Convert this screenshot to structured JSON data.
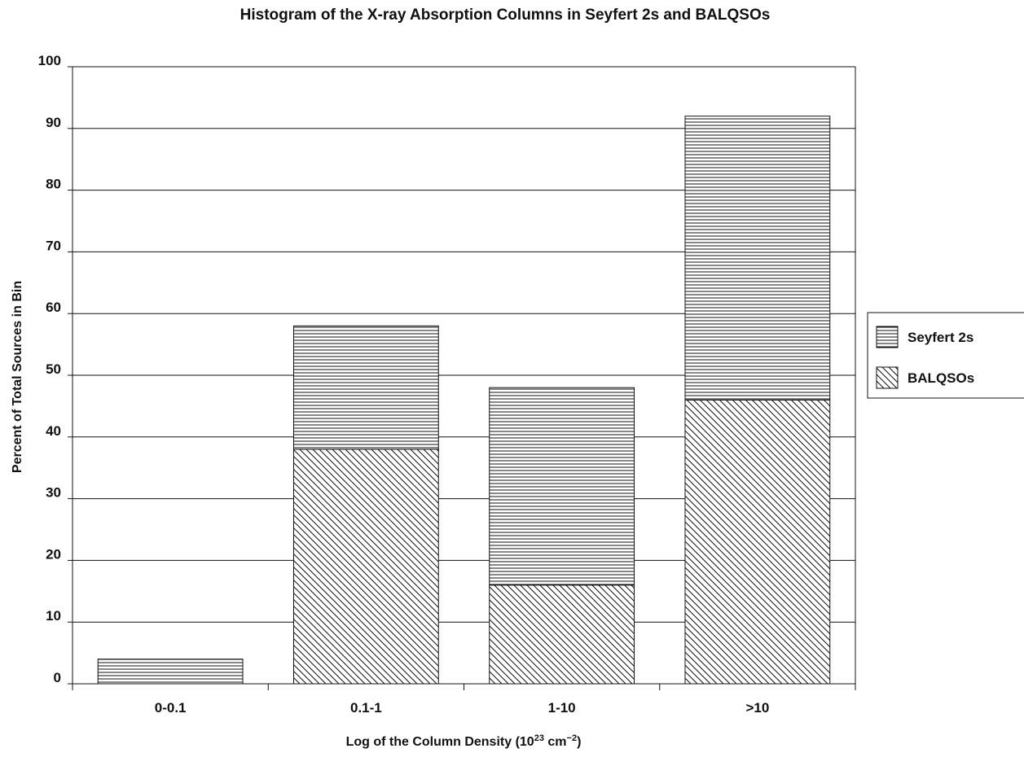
{
  "chart_data": {
    "type": "bar",
    "stacked": true,
    "title": "Histogram of the X-ray Absorption Columns in Seyfert 2s and BALQSOs",
    "xlabel": {
      "main": "Log of the Column Density (10",
      "sup1": "23",
      "mid": " cm",
      "sup2": "−2",
      "end": ")"
    },
    "ylabel": "Percent of Total Sources in Bin",
    "ylim": [
      0,
      100
    ],
    "yticks": [
      0,
      10,
      20,
      30,
      40,
      50,
      60,
      70,
      80,
      90,
      100
    ],
    "ytick_labels": [
      "0",
      "10",
      "20",
      "30",
      "40",
      "50",
      "60",
      "70",
      "80",
      "90",
      "100"
    ],
    "grid": true,
    "legend_position": "right",
    "categories": [
      "0-0.1",
      "0.1-1",
      "1-10",
      ">10"
    ],
    "series": [
      {
        "name": "BALQSOs",
        "pattern": "diagonal-hatch",
        "values": [
          0,
          38,
          16,
          46
        ]
      },
      {
        "name": "Seyfert 2s",
        "pattern": "horizontal-hatch",
        "values": [
          4,
          20,
          32,
          46
        ]
      }
    ],
    "legend": [
      "Seyfert 2s",
      "BALQSOs"
    ],
    "colors": {
      "ink": "#111111",
      "background": "#ffffff"
    }
  }
}
